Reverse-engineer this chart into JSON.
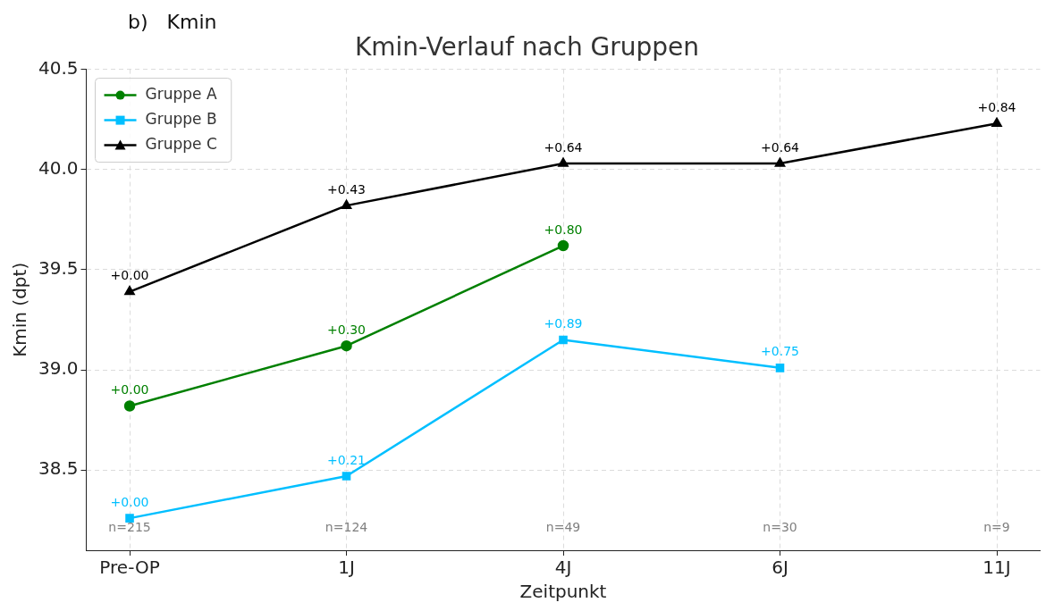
{
  "chart_data": {
    "type": "line",
    "title": "Kmin-Verlauf nach Gruppen",
    "xlabel": "Zeitpunkt",
    "ylabel": "Kmin (dpt)",
    "categories": [
      "Pre-OP",
      "1J",
      "4J",
      "6J",
      "11J"
    ],
    "series": [
      {
        "name": "Gruppe A",
        "color": "#008000",
        "marker": "circle",
        "values": [
          38.82,
          39.12,
          39.62,
          null,
          null
        ]
      },
      {
        "name": "Gruppe B",
        "color": "#00bfff",
        "marker": "square",
        "values": [
          38.26,
          38.47,
          39.15,
          39.01,
          null
        ]
      },
      {
        "name": "Gruppe C",
        "color": "#000000",
        "marker": "triangle",
        "values": [
          39.39,
          39.82,
          40.03,
          40.03,
          40.23
        ]
      }
    ],
    "ylim": [
      38.1,
      40.5
    ],
    "yticks": [
      38.5,
      {
        "value": 39,
        "label": "39.0"
      },
      39.5,
      {
        "value": 40,
        "label": "40.0"
      },
      40.5
    ],
    "grid": true,
    "legend": "top left",
    "line_style": "solid",
    "annotations": [
      "b)   Kmin",
      "n=215",
      "n=124",
      "n=49",
      "n=30",
      "n=9",
      {
        "text": "+0.00",
        "x": "Pre-OP",
        "y": 38.82
      },
      {
        "text": "+0.30",
        "x": "1J",
        "y": 39.12
      },
      {
        "text": "+0.80",
        "x": "4J",
        "y": 39.62
      },
      {
        "text": "+0.00",
        "x": "Pre-OP",
        "y": 38.26
      },
      {
        "text": "+0.21",
        "x": "1J",
        "y": 38.47
      },
      {
        "text": "+0.89",
        "x": "4J",
        "y": 39.15
      },
      {
        "text": "+0.75",
        "x": "6J",
        "y": 39.01
      },
      {
        "text": "+0.00",
        "x": "Pre-OP",
        "y": 39.39
      },
      {
        "text": "+0.43",
        "x": "1J",
        "y": 39.82
      },
      {
        "text": "+0.64",
        "x": "4J",
        "y": 40.03
      },
      {
        "text": "+0.64",
        "x": "6J",
        "y": 40.03
      },
      {
        "text": "+0.84",
        "x": "11J",
        "y": 40.23
      }
    ]
  }
}
